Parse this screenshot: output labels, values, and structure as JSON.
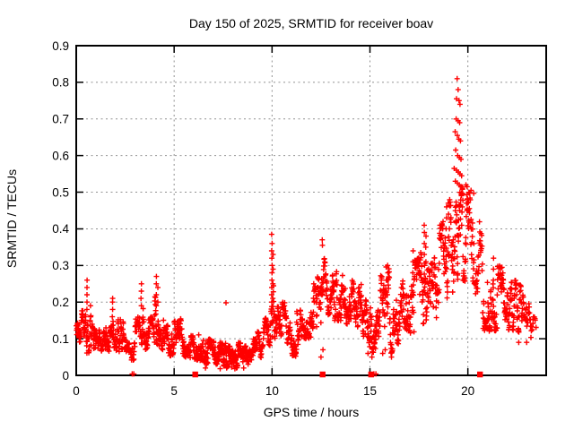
{
  "chart": {
    "title": "Day 150 of 2025, SRMTID for receiver boav",
    "xlabel": "GPS time / hours",
    "ylabel": "SRMTID / TECUs",
    "marker_color": "#ff0000",
    "grid_color": "#909090",
    "border_color": "#000000",
    "text_color": "#000000",
    "background_color": "#ffffff"
  },
  "chart_data": {
    "type": "scatter",
    "title": "Day 150 of 2025, SRMTID for receiver boav",
    "xlabel": "GPS time / hours",
    "ylabel": "SRMTID / TECUs",
    "series_name": "SRMTID",
    "marker": "plus",
    "marker_color": "#ff0000",
    "xlim": [
      0,
      24
    ],
    "ylim": [
      0,
      0.9
    ],
    "xticks": [
      0,
      5,
      10,
      15,
      20
    ],
    "yticks": [
      0,
      0.1,
      0.2,
      0.3,
      0.4,
      0.5,
      0.6,
      0.7,
      0.8,
      0.9
    ],
    "grid": true,
    "legend": null,
    "envelope_bins": {
      "comment": "dense scatter summarized as [x_start, y_min, y_max, n_points] per 0.25 h bin",
      "bin_width": 0.25,
      "bins": [
        [
          0.0,
          0.09,
          0.16,
          22
        ],
        [
          0.25,
          0.08,
          0.18,
          22
        ],
        [
          0.5,
          0.06,
          0.2,
          24
        ],
        [
          0.75,
          0.05,
          0.14,
          22
        ],
        [
          1.0,
          0.06,
          0.14,
          22
        ],
        [
          1.25,
          0.06,
          0.13,
          22
        ],
        [
          1.5,
          0.05,
          0.13,
          22
        ],
        [
          1.75,
          0.07,
          0.19,
          22
        ],
        [
          2.0,
          0.06,
          0.16,
          22
        ],
        [
          2.25,
          0.07,
          0.17,
          22
        ],
        [
          2.5,
          0.06,
          0.14,
          22
        ],
        [
          2.75,
          0.04,
          0.12,
          20
        ],
        [
          3.0,
          0.07,
          0.16,
          22
        ],
        [
          3.25,
          0.08,
          0.21,
          24
        ],
        [
          3.5,
          0.07,
          0.18,
          22
        ],
        [
          3.75,
          0.06,
          0.16,
          22
        ],
        [
          4.0,
          0.08,
          0.22,
          24
        ],
        [
          4.25,
          0.07,
          0.18,
          22
        ],
        [
          4.5,
          0.06,
          0.14,
          22
        ],
        [
          4.75,
          0.05,
          0.13,
          22
        ],
        [
          5.0,
          0.06,
          0.15,
          22
        ],
        [
          5.25,
          0.06,
          0.16,
          22
        ],
        [
          5.5,
          0.05,
          0.12,
          22
        ],
        [
          5.75,
          0.04,
          0.11,
          22
        ],
        [
          6.0,
          0.04,
          0.12,
          22
        ],
        [
          6.25,
          0.04,
          0.15,
          22
        ],
        [
          6.5,
          0.03,
          0.12,
          24
        ],
        [
          6.75,
          0.03,
          0.1,
          26
        ],
        [
          7.0,
          0.03,
          0.1,
          26
        ],
        [
          7.25,
          0.02,
          0.09,
          26
        ],
        [
          7.5,
          0.02,
          0.09,
          28
        ],
        [
          7.75,
          0.02,
          0.08,
          28
        ],
        [
          8.0,
          0.02,
          0.08,
          28
        ],
        [
          8.25,
          0.03,
          0.09,
          26
        ],
        [
          8.5,
          0.02,
          0.08,
          26
        ],
        [
          8.75,
          0.03,
          0.09,
          24
        ],
        [
          9.0,
          0.03,
          0.1,
          22
        ],
        [
          9.25,
          0.04,
          0.12,
          20
        ],
        [
          9.5,
          0.06,
          0.16,
          20
        ],
        [
          9.75,
          0.08,
          0.22,
          22
        ],
        [
          10.0,
          0.1,
          0.25,
          22
        ],
        [
          10.25,
          0.1,
          0.22,
          20
        ],
        [
          10.5,
          0.1,
          0.2,
          18
        ],
        [
          10.75,
          0.08,
          0.18,
          18
        ],
        [
          11.0,
          0.05,
          0.17,
          20
        ],
        [
          11.25,
          0.08,
          0.18,
          20
        ],
        [
          11.5,
          0.1,
          0.2,
          20
        ],
        [
          11.75,
          0.1,
          0.22,
          20
        ],
        [
          12.0,
          0.12,
          0.25,
          22
        ],
        [
          12.25,
          0.13,
          0.28,
          22
        ],
        [
          12.5,
          0.15,
          0.32,
          22
        ],
        [
          12.75,
          0.15,
          0.3,
          22
        ],
        [
          13.0,
          0.15,
          0.32,
          22
        ],
        [
          13.25,
          0.14,
          0.3,
          22
        ],
        [
          13.5,
          0.13,
          0.28,
          22
        ],
        [
          13.75,
          0.14,
          0.26,
          22
        ],
        [
          14.0,
          0.13,
          0.26,
          22
        ],
        [
          14.25,
          0.12,
          0.24,
          22
        ],
        [
          14.5,
          0.1,
          0.25,
          22
        ],
        [
          14.75,
          0.07,
          0.22,
          22
        ],
        [
          15.0,
          0.06,
          0.22,
          22
        ],
        [
          15.25,
          0.07,
          0.22,
          22
        ],
        [
          15.5,
          0.08,
          0.28,
          22
        ],
        [
          15.75,
          0.1,
          0.3,
          22
        ],
        [
          16.0,
          0.06,
          0.22,
          22
        ],
        [
          16.25,
          0.08,
          0.24,
          22
        ],
        [
          16.5,
          0.1,
          0.28,
          22
        ],
        [
          16.75,
          0.12,
          0.32,
          22
        ],
        [
          17.0,
          0.1,
          0.3,
          22
        ],
        [
          17.25,
          0.12,
          0.32,
          22
        ],
        [
          17.5,
          0.13,
          0.34,
          22
        ],
        [
          17.75,
          0.15,
          0.38,
          24
        ],
        [
          18.0,
          0.15,
          0.35,
          22
        ],
        [
          18.25,
          0.15,
          0.38,
          22
        ],
        [
          18.5,
          0.18,
          0.42,
          22
        ],
        [
          18.75,
          0.2,
          0.46,
          22
        ],
        [
          19.0,
          0.22,
          0.48,
          22
        ],
        [
          19.25,
          0.25,
          0.48,
          24
        ],
        [
          19.5,
          0.25,
          0.52,
          26
        ],
        [
          19.75,
          0.25,
          0.5,
          24
        ],
        [
          20.0,
          0.25,
          0.5,
          22
        ],
        [
          20.25,
          0.22,
          0.46,
          20
        ],
        [
          20.5,
          0.2,
          0.42,
          20
        ],
        [
          20.75,
          0.12,
          0.3,
          20
        ],
        [
          21.0,
          0.12,
          0.3,
          20
        ],
        [
          21.25,
          0.12,
          0.32,
          22
        ],
        [
          21.5,
          0.15,
          0.3,
          22
        ],
        [
          21.75,
          0.15,
          0.28,
          22
        ],
        [
          22.0,
          0.12,
          0.28,
          24
        ],
        [
          22.25,
          0.12,
          0.26,
          24
        ],
        [
          22.5,
          0.1,
          0.25,
          24
        ],
        [
          22.75,
          0.12,
          0.22,
          18
        ],
        [
          23.0,
          0.1,
          0.2,
          14
        ],
        [
          23.25,
          0.1,
          0.18,
          8
        ]
      ]
    },
    "spike_columns": [
      [
        0.55,
        [
          0.18,
          0.2,
          0.22,
          0.24,
          0.26
        ]
      ],
      [
        1.85,
        [
          0.16,
          0.18,
          0.2,
          0.21
        ]
      ],
      [
        3.32,
        [
          0.19,
          0.21,
          0.23,
          0.25
        ]
      ],
      [
        4.08,
        [
          0.19,
          0.22,
          0.25,
          0.27
        ]
      ],
      [
        4.18,
        [
          0.2,
          0.24
        ]
      ],
      [
        7.66,
        [
          0.198
        ]
      ],
      [
        9.99,
        [
          0.2,
          0.22,
          0.24,
          0.26,
          0.28,
          0.3,
          0.32,
          0.34,
          0.36,
          0.385
        ]
      ],
      [
        10.04,
        [
          0.21,
          0.25,
          0.29,
          0.33
        ]
      ],
      [
        12.56,
        [
          0.355,
          0.37
        ]
      ],
      [
        15.9,
        [
          0.26,
          0.28,
          0.3
        ]
      ],
      [
        17.2,
        [
          0.28,
          0.31,
          0.34
        ]
      ],
      [
        17.78,
        [
          0.3,
          0.33,
          0.36,
          0.39,
          0.41
        ]
      ],
      [
        17.85,
        [
          0.31,
          0.35,
          0.38
        ]
      ],
      [
        18.9,
        [
          0.4,
          0.43,
          0.46
        ]
      ],
      [
        19.0,
        [
          0.44,
          0.47
        ]
      ],
      [
        21.3,
        [
          0.26,
          0.29,
          0.32
        ]
      ]
    ],
    "high_points": [
      [
        19.45,
        0.81
      ],
      [
        19.5,
        0.78
      ],
      [
        19.42,
        0.755
      ],
      [
        19.55,
        0.75
      ],
      [
        19.6,
        0.74
      ],
      [
        19.4,
        0.7
      ],
      [
        19.5,
        0.695
      ],
      [
        19.58,
        0.69
      ],
      [
        19.35,
        0.665
      ],
      [
        19.46,
        0.655
      ],
      [
        19.54,
        0.645
      ],
      [
        19.62,
        0.64
      ],
      [
        19.38,
        0.615
      ],
      [
        19.48,
        0.6
      ],
      [
        19.57,
        0.595
      ],
      [
        19.65,
        0.59
      ],
      [
        19.3,
        0.565
      ],
      [
        19.42,
        0.56
      ],
      [
        19.51,
        0.555
      ],
      [
        19.6,
        0.55
      ],
      [
        19.68,
        0.545
      ],
      [
        19.36,
        0.53
      ],
      [
        19.46,
        0.525
      ],
      [
        19.56,
        0.52
      ],
      [
        19.64,
        0.515
      ],
      [
        19.72,
        0.51
      ],
      [
        19.9,
        0.52
      ],
      [
        19.96,
        0.515
      ],
      [
        20.05,
        0.5
      ],
      [
        20.16,
        0.505
      ],
      [
        20.3,
        0.497
      ]
    ],
    "outlier_points": [
      [
        11.02,
        0.06
      ],
      [
        11.08,
        0.07
      ],
      [
        11.15,
        0.055
      ],
      [
        12.5,
        0.05
      ],
      [
        12.6,
        0.07
      ],
      [
        14.9,
        0.06
      ],
      [
        15.1,
        0.05
      ],
      [
        15.65,
        0.06
      ],
      [
        15.78,
        0.07
      ],
      [
        16.1,
        0.05
      ],
      [
        6.6,
        0.02
      ],
      [
        7.35,
        0.018
      ],
      [
        8.1,
        0.018
      ],
      [
        8.55,
        0.02
      ],
      [
        22.6,
        0.09
      ],
      [
        23.0,
        0.09
      ]
    ],
    "axis_squares_x": [
      6.08,
      12.58,
      15.06,
      20.62
    ],
    "axis_plus_x": [
      2.86,
      2.94,
      15.2,
      15.3
    ]
  }
}
